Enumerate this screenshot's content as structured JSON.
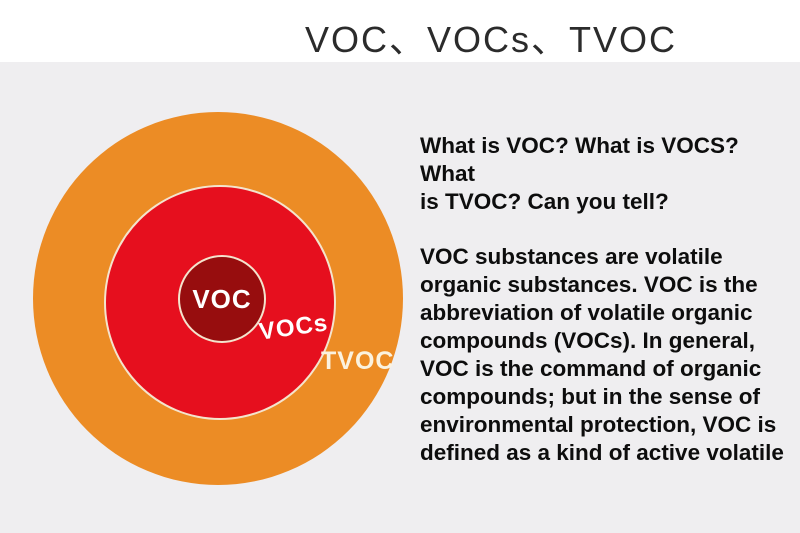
{
  "title": "VOC、VOCs、TVOC",
  "diagram": {
    "labels": {
      "inner": "VOC",
      "middle": "VOCs",
      "outer": "TVOC"
    },
    "colors": {
      "stage_background": "#efeef0",
      "outer_circle": "#ec8c25",
      "middle_circle": "#e60f1e",
      "inner_circle": "#970d0e",
      "ring_stroke": "#f4e4cd",
      "inner_label_text": "#ffffff",
      "middle_label_text": "#ffffff",
      "outer_label_text": "#fbf2df",
      "title_text": "#2b2b2b"
    }
  },
  "text_panel": {
    "heading": "What is VOC? What is VOCS? What\nis TVOC? Can you tell?",
    "body": "VOC substances are volatile\norganic substances. VOC is the\nabbreviation of volatile organic\ncompounds (VOCs). In general,\nVOC is the command of organic\ncompounds; but in the sense of\nenvironmental protection, VOC is\ndefined as a kind of active volatile"
  }
}
